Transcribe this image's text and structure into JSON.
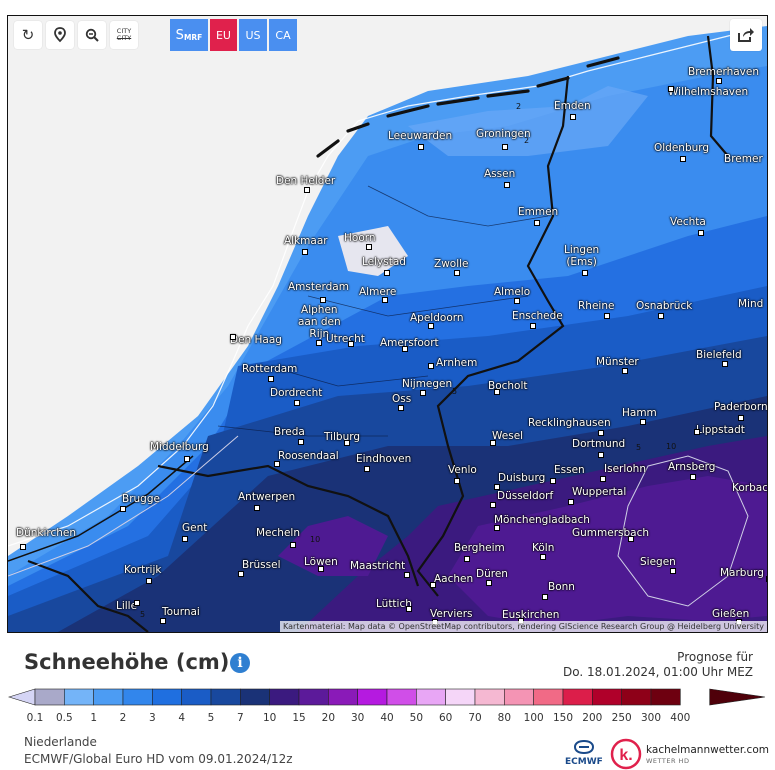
{
  "toolbar": {
    "reload_icon": "reload-icon",
    "location_icon": "location-pin-icon",
    "zoom_icon": "zoom-out-icon",
    "city_toggle_top": "CITY",
    "city_toggle_bottom": "CITY"
  },
  "models": {
    "smrf_main": "S",
    "smrf_sub": "MRF",
    "eu": "EU",
    "us": "US",
    "ca": "CA"
  },
  "colors": {
    "smrf": "#4a8ff0",
    "eu": "#e0214c",
    "us": "#4a8ff0",
    "ca": "#4a8ff0"
  },
  "share_icon": "share-icon",
  "attribution": "Kartenmaterial: Map data © OpenStreetMap contributors, rendering GIScience Research Group @ Heidelberg University",
  "cities": [
    {
      "name": "Bremerhaven"
    },
    {
      "name": "Wilhelmshaven"
    },
    {
      "name": "Emden"
    },
    {
      "name": "Leeuwarden"
    },
    {
      "name": "Groningen"
    },
    {
      "name": "Oldenburg"
    },
    {
      "name": "Bremer"
    },
    {
      "name": "Den Helder"
    },
    {
      "name": "Assen"
    },
    {
      "name": "Emmen"
    },
    {
      "name": "Vechta"
    },
    {
      "name": "Alkmaar"
    },
    {
      "name": "Hoorn"
    },
    {
      "name": "Lingen\n(Ems)"
    },
    {
      "name": "Lelystad"
    },
    {
      "name": "Zwolle"
    },
    {
      "name": "Amsterdam"
    },
    {
      "name": "Almere"
    },
    {
      "name": "Almelo"
    },
    {
      "name": "Rheine"
    },
    {
      "name": "Osnabrück"
    },
    {
      "name": "Mind"
    },
    {
      "name": "Alphen\naan den\nRijn"
    },
    {
      "name": "Enschede"
    },
    {
      "name": "Apeldoorn"
    },
    {
      "name": "Den Haag"
    },
    {
      "name": "Utrecht"
    },
    {
      "name": "Amersfoort"
    },
    {
      "name": "Bielefeld"
    },
    {
      "name": "Rotterdam"
    },
    {
      "name": "Arnhem"
    },
    {
      "name": "Münster"
    },
    {
      "name": "Nijmegen"
    },
    {
      "name": "Dordrecht"
    },
    {
      "name": "Bocholt"
    },
    {
      "name": "Oss"
    },
    {
      "name": "Paderborn"
    },
    {
      "name": "Hamm"
    },
    {
      "name": "Recklinghausen"
    },
    {
      "name": "Lippstadt"
    },
    {
      "name": "Breda"
    },
    {
      "name": "Tilburg"
    },
    {
      "name": "Wesel"
    },
    {
      "name": "Dortmund"
    },
    {
      "name": "Middelburg"
    },
    {
      "name": "Roosendaal"
    },
    {
      "name": "Eindhoven"
    },
    {
      "name": "Venlo"
    },
    {
      "name": "Essen"
    },
    {
      "name": "Iserlohn"
    },
    {
      "name": "Arnsberg"
    },
    {
      "name": "Duisburg"
    },
    {
      "name": "Korbac"
    },
    {
      "name": "Brugge"
    },
    {
      "name": "Antwerpen"
    },
    {
      "name": "Düsseldorf"
    },
    {
      "name": "Wuppertal"
    },
    {
      "name": "Dünkirchen"
    },
    {
      "name": "Gent"
    },
    {
      "name": "Mecheln"
    },
    {
      "name": "Mönchengladbach"
    },
    {
      "name": "Gummersbach"
    },
    {
      "name": "Bergheim"
    },
    {
      "name": "Köln"
    },
    {
      "name": "Brüssel"
    },
    {
      "name": "Löwen"
    },
    {
      "name": "Siegen"
    },
    {
      "name": "Kortrijk"
    },
    {
      "name": "Maastricht"
    },
    {
      "name": "Aachen"
    },
    {
      "name": "Düren"
    },
    {
      "name": "Marburg"
    },
    {
      "name": "Bonn"
    },
    {
      "name": "Lille"
    },
    {
      "name": "Tournai"
    },
    {
      "name": "Lüttich"
    },
    {
      "name": "Verviers"
    },
    {
      "name": "Euskirchen"
    },
    {
      "name": "Gießen"
    }
  ],
  "contour_labels": [
    "2",
    "2",
    "5",
    "10",
    "10",
    "5",
    "5"
  ],
  "legend": {
    "title": "Schneehöhe (cm)",
    "info_icon": "i",
    "forecast_label": "Prognose für",
    "forecast_time": "Do. 18.01.2024, 01:00 Uhr MEZ",
    "ticks": [
      "0.1",
      "0.5",
      "1",
      "2",
      "3",
      "4",
      "5",
      "7",
      "10",
      "15",
      "20",
      "30",
      "40",
      "50",
      "60",
      "70",
      "80",
      "100",
      "150",
      "200",
      "250",
      "300",
      "400"
    ],
    "colors": [
      "#d5d5f5",
      "#a9a9c9",
      "#74b4f8",
      "#4c9cf3",
      "#3286ec",
      "#1f6fe0",
      "#1a5cc6",
      "#18489e",
      "#1a3277",
      "#3b1a7f",
      "#5c1a9a",
      "#8a1ab8",
      "#b51ae0",
      "#d04ee8",
      "#e8a6f5",
      "#f5d6f8",
      "#f5b8d2",
      "#f494b4",
      "#f16a86",
      "#dc1e4a",
      "#b0002a",
      "#8e0018",
      "#6e0010",
      "#4f000a"
    ]
  },
  "footer": {
    "region": "Niederlande",
    "model_run": "ECMWF/Global Euro HD vom 09.01.2024/12z",
    "ecmwf": "ECMWF",
    "km_name": "kachelmannwetter.com",
    "km_sub": "WETTER HD",
    "km_letter": "k."
  }
}
